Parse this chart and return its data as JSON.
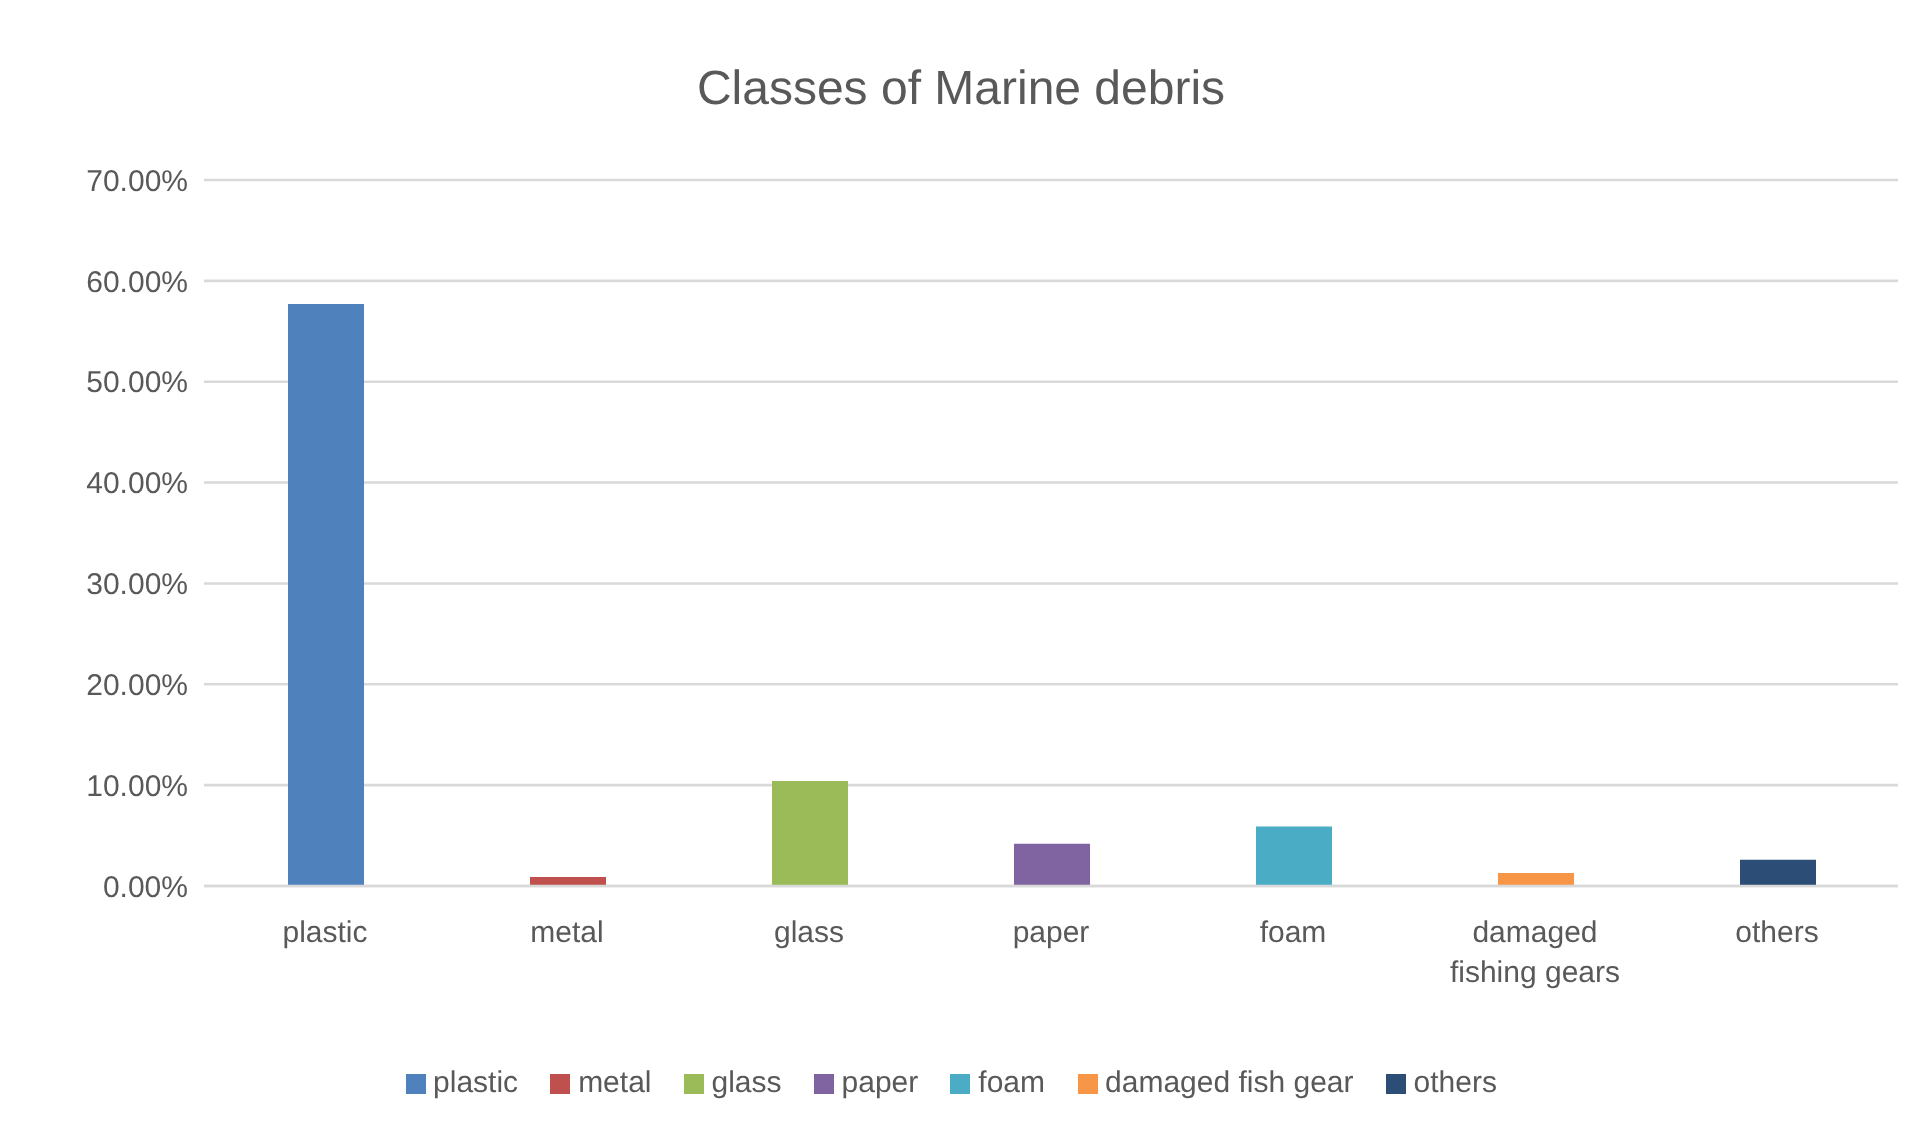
{
  "chart_data": {
    "type": "bar",
    "title": "Classes of Marine debris",
    "categories": [
      "plastic",
      "metal",
      "glass",
      "paper",
      "foam",
      "damaged fishing gears",
      "others"
    ],
    "series": [
      {
        "name": "plastic",
        "color": "#4f81bd",
        "values": [
          57.7,
          null,
          null,
          null,
          null,
          null,
          null
        ]
      },
      {
        "name": "metal",
        "color": "#c0504d",
        "values": [
          null,
          0.9,
          null,
          null,
          null,
          null,
          null
        ]
      },
      {
        "name": "glass",
        "color": "#9bbb59",
        "values": [
          null,
          null,
          10.4,
          null,
          null,
          null,
          null
        ]
      },
      {
        "name": "paper",
        "color": "#8064a2",
        "values": [
          null,
          null,
          null,
          4.2,
          null,
          null,
          null
        ]
      },
      {
        "name": "foam",
        "color": "#4bacc6",
        "values": [
          null,
          null,
          null,
          null,
          5.9,
          null,
          null
        ]
      },
      {
        "name": "damaged fish gear",
        "color": "#f79646",
        "values": [
          null,
          null,
          null,
          null,
          null,
          1.3,
          null
        ]
      },
      {
        "name": "others",
        "color": "#2c4d75",
        "values": [
          null,
          null,
          null,
          null,
          null,
          null,
          2.6
        ]
      }
    ],
    "stacked": true,
    "ylim": [
      0,
      70
    ],
    "yticks": [
      {
        "value": 0,
        "label": "0.00%"
      },
      {
        "value": 10,
        "label": "10.00%"
      },
      {
        "value": 20,
        "label": "20.00%"
      },
      {
        "value": 30,
        "label": "30.00%"
      },
      {
        "value": 40,
        "label": "40.00%"
      },
      {
        "value": 50,
        "label": "50.00%"
      },
      {
        "value": 60,
        "label": "60.00%"
      },
      {
        "value": 70,
        "label": "70.00%"
      }
    ],
    "grid": "y",
    "legend": "bottom"
  }
}
